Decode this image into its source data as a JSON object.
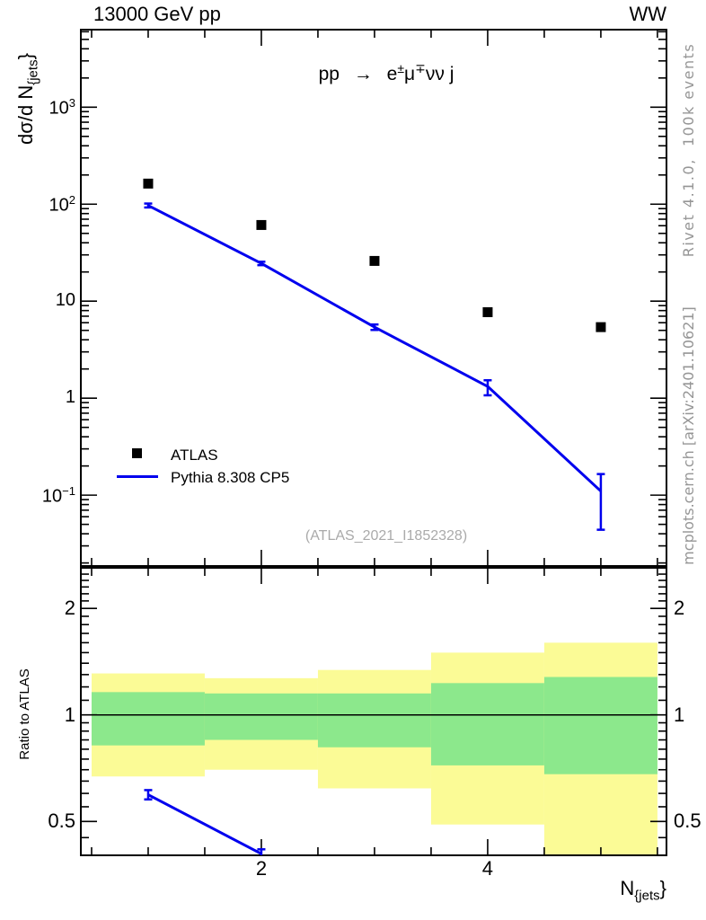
{
  "header": {
    "left": "13000 GeV pp",
    "right": "WW"
  },
  "side_notes": {
    "top_rotated": "Rivet 4.1.0,  100k events",
    "bottom_rotated": "mcplots.cern.ch [arXiv:2401.10621]"
  },
  "watermark": "(ATLAS_2021_I1852328)",
  "process_title": {
    "pre": "pp ",
    "arrow": "→",
    "e": " e",
    "e_sup": "±",
    "mu": "μ",
    "mu_sup": "∓",
    "post": "νν j"
  },
  "axis_labels": {
    "y_main_base": "dσ/d N",
    "y_main_sub": "{jets",
    "y_main_close": "}",
    "x_base": "N",
    "x_sub": "{jets",
    "x_close": "}",
    "ratio": "Ratio to ATLAS"
  },
  "legend": [
    {
      "label": "ATLAS",
      "marker": "square",
      "color": "#000000"
    },
    {
      "label": "Pythia 8.308 CP5",
      "marker": "line",
      "color": "#0000ee"
    }
  ],
  "colors": {
    "mc_line": "#0000ee",
    "data_marker": "#000000",
    "band_yellow": "#fbfb96",
    "band_green": "#8ce88c",
    "side_text": "#969696",
    "watermark": "#aaaaaa"
  },
  "chart_data": [
    {
      "type": "line",
      "panel": "main",
      "title": "pp → e±μ∓νν j",
      "ylabel": "dσ/d N_{jets}",
      "xlabel": "N_{jets}",
      "x_range": [
        0.405,
        5.58
      ],
      "y_range_log": [
        0.0186,
        6300
      ],
      "y_tick_decades": [
        1000,
        100,
        10,
        1,
        0.1
      ],
      "x_labeled_ticks": [
        2,
        4
      ],
      "x_minor_tick_step": 0.5,
      "x_minor_range": [
        0.5,
        5.5
      ],
      "legend_position": "bottom-left-inside",
      "series": [
        {
          "name": "ATLAS",
          "style": "squares",
          "color": "#000000",
          "x": [
            1,
            2,
            3,
            4,
            5
          ],
          "y": [
            163,
            61,
            26,
            7.7,
            5.4
          ]
        },
        {
          "name": "Pythia 8.308 CP5",
          "style": "line-errorbars",
          "color": "#0000ee",
          "x": [
            1,
            2,
            3,
            4,
            5
          ],
          "y": [
            97,
            24.5,
            5.4,
            1.32,
            0.11
          ],
          "y_err_hi": [
            4.5,
            1.0,
            0.35,
            0.21,
            0.055
          ],
          "y_err_lo": [
            4.5,
            1.0,
            0.35,
            0.25,
            0.066
          ]
        }
      ]
    },
    {
      "type": "ratio",
      "panel": "ratio",
      "ylabel": "Ratio to ATLAS",
      "y_range_log": [
        0.401,
        2.605
      ],
      "y_labeled_ticks": [
        2,
        1,
        0.5
      ],
      "reference_line": 1,
      "bands": {
        "bin_edges": [
          0.5,
          1.5,
          2.5,
          3.5,
          4.5,
          5.5
        ],
        "yellow": [
          [
            0.67,
            1.31
          ],
          [
            0.7,
            1.27
          ],
          [
            0.62,
            1.34
          ],
          [
            0.49,
            1.5
          ],
          [
            0.4,
            1.6
          ]
        ],
        "green": [
          [
            0.82,
            1.16
          ],
          [
            0.85,
            1.15
          ],
          [
            0.81,
            1.15
          ],
          [
            0.72,
            1.23
          ],
          [
            0.68,
            1.28
          ]
        ]
      },
      "series": [
        {
          "name": "Pythia 8.308 CP5",
          "style": "line-errorbars",
          "color": "#0000ee",
          "x": [
            1,
            2
          ],
          "y": [
            0.595,
            0.405
          ],
          "y_err_hi": [
            0.018,
            0.012
          ],
          "y_err_lo": [
            0.018,
            0.012
          ]
        }
      ]
    }
  ]
}
